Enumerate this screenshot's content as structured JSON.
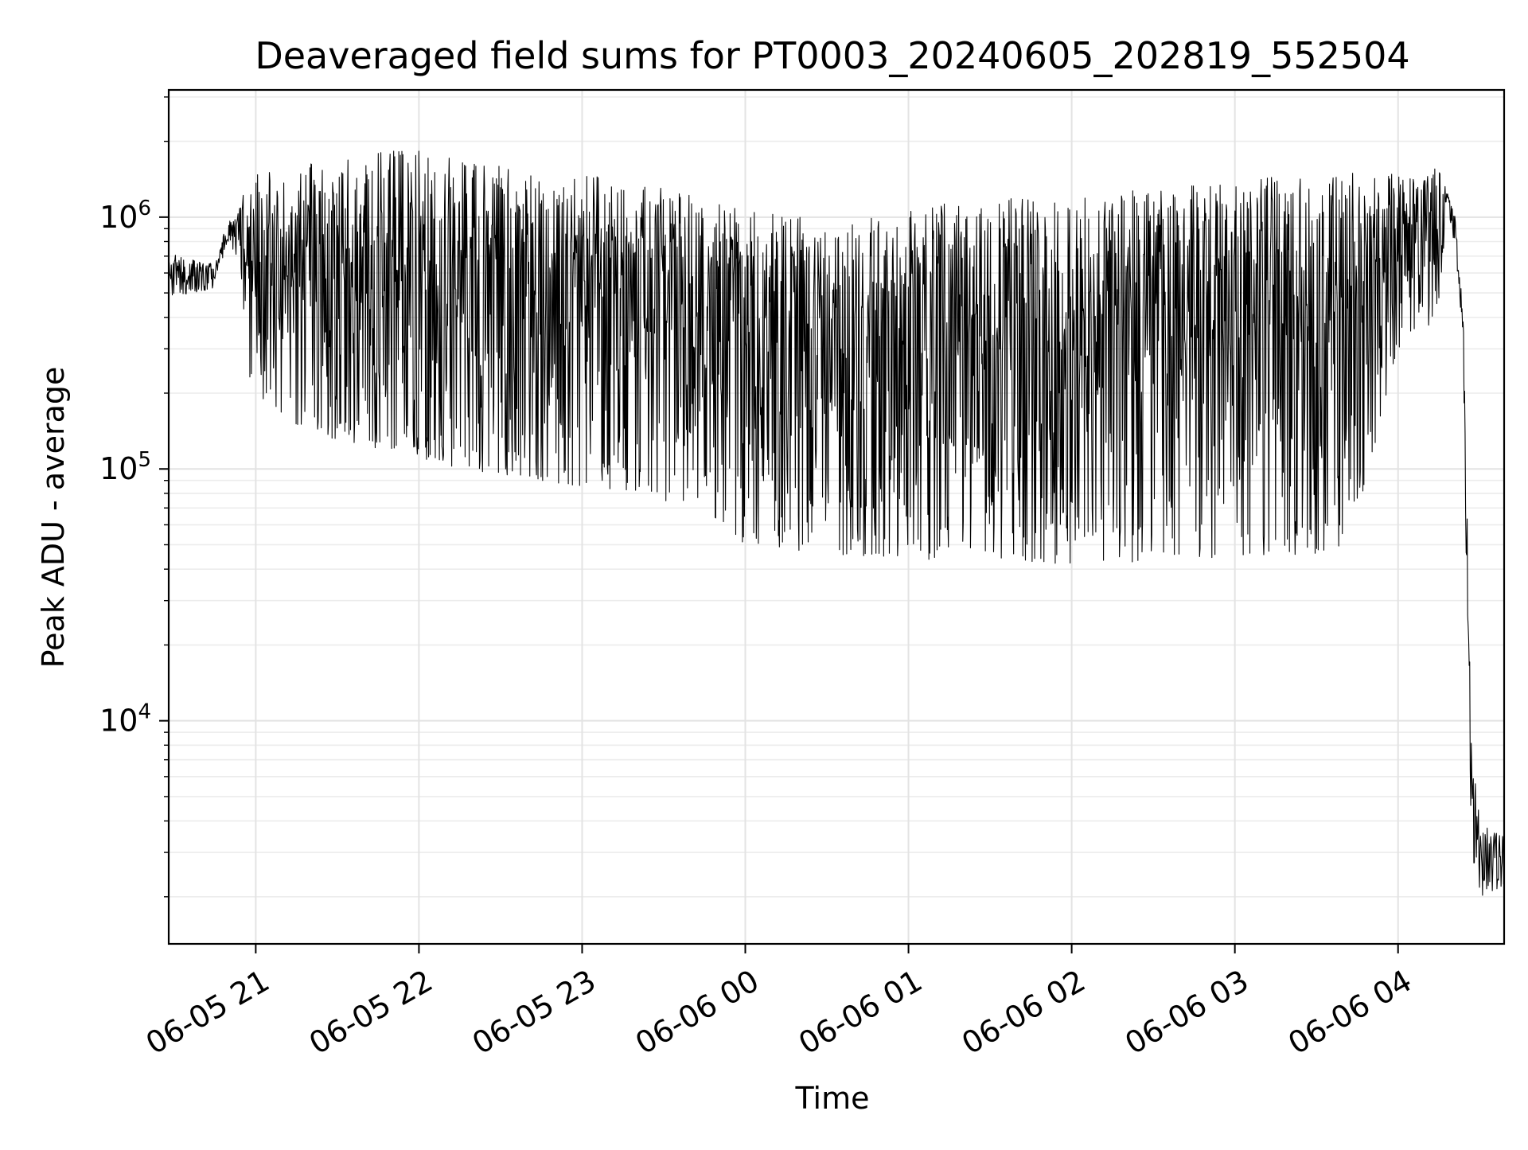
{
  "chart_data": {
    "type": "line",
    "title": "Deaveraged field sums for PT0003_20240605_202819_552504",
    "xlabel": "Time",
    "ylabel": "Peak ADU - average",
    "yscale": "log",
    "xlim": [
      "2024-06-05 20:28",
      "2024-06-06 04:39"
    ],
    "ylim": [
      1300,
      3200000
    ],
    "grid": true,
    "xtick_labels": [
      "06-05 21",
      "06-05 22",
      "06-05 23",
      "06-06 00",
      "06-06 01",
      "06-06 02",
      "06-06 03",
      "06-06 04"
    ],
    "ytick_labels": [
      {
        "base": "10",
        "exp": "4"
      },
      {
        "base": "10",
        "exp": "5"
      },
      {
        "base": "10",
        "exp": "6"
      }
    ],
    "series": [
      {
        "x": [
          "2024-06-05 20:28",
          "2024-06-05 20:45",
          "2024-06-05 20:50",
          "2024-06-05 20:53",
          "2024-06-05 20:56",
          "2024-06-05 21:00",
          "2024-06-05 21:15",
          "2024-06-05 21:30",
          "2024-06-05 21:45",
          "2024-06-05 22:00",
          "2024-06-05 22:15",
          "2024-06-05 22:30",
          "2024-06-05 22:45",
          "2024-06-05 23:00",
          "2024-06-05 23:15",
          "2024-06-05 23:30",
          "2024-06-05 23:45",
          "2024-06-06 00:00",
          "2024-06-06 00:15",
          "2024-06-06 00:30",
          "2024-06-06 00:45",
          "2024-06-06 01:00",
          "2024-06-06 01:30",
          "2024-06-06 02:00",
          "2024-06-06 02:30",
          "2024-06-06 03:00",
          "2024-06-06 03:30",
          "2024-06-06 03:40",
          "2024-06-06 03:50",
          "2024-06-06 04:00",
          "2024-06-06 04:08",
          "2024-06-06 04:15",
          "2024-06-06 04:18",
          "2024-06-06 04:21",
          "2024-06-06 04:24",
          "2024-06-06 04:27",
          "2024-06-06 04:30",
          "2024-06-06 04:39"
        ],
        "upper": [
          720000,
          650000,
          1000000,
          1000000,
          1300000,
          1500000,
          1600000,
          1700000,
          1800000,
          1900000,
          1700000,
          1600000,
          1500000,
          1500000,
          1400000,
          1300000,
          1200000,
          1100000,
          1100000,
          1000000,
          1000000,
          1100000,
          1200000,
          1200000,
          1300000,
          1400000,
          1500000,
          1500000,
          1500000,
          1500000,
          1400000,
          1600000,
          1300000,
          1000000,
          400000,
          8000,
          4000,
          3500
        ],
        "lower": [
          480000,
          520000,
          800000,
          700000,
          260000,
          200000,
          150000,
          130000,
          120000,
          110000,
          100000,
          95000,
          90000,
          85000,
          80000,
          75000,
          70000,
          50000,
          48000,
          46000,
          45000,
          44000,
          43000,
          42000,
          43000,
          45000,
          45000,
          50000,
          100000,
          300000,
          350000,
          400000,
          1200000,
          700000,
          200000,
          2700,
          2000,
          2200
        ]
      }
    ]
  }
}
